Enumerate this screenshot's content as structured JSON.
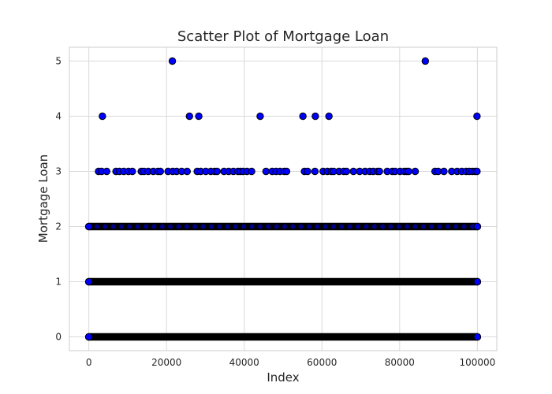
{
  "chart_data": {
    "type": "scatter",
    "title": "Scatter Plot of Mortgage Loan",
    "xlabel": "Index",
    "ylabel": "Mortgage Loan",
    "xlim": [
      -5000,
      105000
    ],
    "ylim": [
      -0.25,
      5.25
    ],
    "x_ticks": [
      0,
      20000,
      40000,
      60000,
      80000,
      100000
    ],
    "x_tick_labels": [
      "0",
      "20000",
      "40000",
      "60000",
      "80000",
      "100000"
    ],
    "y_ticks": [
      0,
      1,
      2,
      3,
      4,
      5
    ],
    "y_tick_labels": [
      "0",
      "1",
      "2",
      "3",
      "4",
      "5"
    ],
    "grid": true,
    "marker_color": "#0000ff",
    "marker_edge_color": "#000000",
    "series": [
      {
        "dense_ranges": [
          {
            "y": 0,
            "x_start": 0,
            "x_end": 100000
          },
          {
            "y": 1,
            "x_start": 0,
            "x_end": 100000
          },
          {
            "y": 2,
            "x_start": 0,
            "x_end": 100000
          }
        ],
        "points": [
          {
            "x": 2500,
            "y": 3
          },
          {
            "x": 3300,
            "y": 3
          },
          {
            "x": 4600,
            "y": 3
          },
          {
            "x": 7000,
            "y": 3
          },
          {
            "x": 7900,
            "y": 3
          },
          {
            "x": 9000,
            "y": 3
          },
          {
            "x": 10200,
            "y": 3
          },
          {
            "x": 11200,
            "y": 3
          },
          {
            "x": 13500,
            "y": 3
          },
          {
            "x": 14200,
            "y": 3
          },
          {
            "x": 15300,
            "y": 3
          },
          {
            "x": 16600,
            "y": 3
          },
          {
            "x": 17800,
            "y": 3
          },
          {
            "x": 18400,
            "y": 3
          },
          {
            "x": 20400,
            "y": 3
          },
          {
            "x": 21600,
            "y": 3
          },
          {
            "x": 22600,
            "y": 3
          },
          {
            "x": 23900,
            "y": 3
          },
          {
            "x": 25300,
            "y": 3
          },
          {
            "x": 27900,
            "y": 3
          },
          {
            "x": 28800,
            "y": 3
          },
          {
            "x": 30100,
            "y": 3
          },
          {
            "x": 31400,
            "y": 3
          },
          {
            "x": 32400,
            "y": 3
          },
          {
            "x": 33000,
            "y": 3
          },
          {
            "x": 34800,
            "y": 3
          },
          {
            "x": 36000,
            "y": 3
          },
          {
            "x": 37200,
            "y": 3
          },
          {
            "x": 38400,
            "y": 3
          },
          {
            "x": 39000,
            "y": 3
          },
          {
            "x": 39700,
            "y": 3
          },
          {
            "x": 40700,
            "y": 3
          },
          {
            "x": 41900,
            "y": 3
          },
          {
            "x": 45600,
            "y": 3
          },
          {
            "x": 47200,
            "y": 3
          },
          {
            "x": 48200,
            "y": 3
          },
          {
            "x": 49200,
            "y": 3
          },
          {
            "x": 50300,
            "y": 3
          },
          {
            "x": 50900,
            "y": 3
          },
          {
            "x": 55500,
            "y": 3
          },
          {
            "x": 56300,
            "y": 3
          },
          {
            "x": 58200,
            "y": 3
          },
          {
            "x": 60300,
            "y": 3
          },
          {
            "x": 61400,
            "y": 3
          },
          {
            "x": 62400,
            "y": 3
          },
          {
            "x": 63000,
            "y": 3
          },
          {
            "x": 64400,
            "y": 3
          },
          {
            "x": 65600,
            "y": 3
          },
          {
            "x": 66300,
            "y": 3
          },
          {
            "x": 68100,
            "y": 3
          },
          {
            "x": 69700,
            "y": 3
          },
          {
            "x": 71100,
            "y": 3
          },
          {
            "x": 72300,
            "y": 3
          },
          {
            "x": 73200,
            "y": 3
          },
          {
            "x": 74300,
            "y": 3
          },
          {
            "x": 74800,
            "y": 3
          },
          {
            "x": 76800,
            "y": 3
          },
          {
            "x": 78100,
            "y": 3
          },
          {
            "x": 78800,
            "y": 3
          },
          {
            "x": 80100,
            "y": 3
          },
          {
            "x": 81200,
            "y": 3
          },
          {
            "x": 81800,
            "y": 3
          },
          {
            "x": 82300,
            "y": 3
          },
          {
            "x": 84000,
            "y": 3
          },
          {
            "x": 89100,
            "y": 3
          },
          {
            "x": 89900,
            "y": 3
          },
          {
            "x": 91400,
            "y": 3
          },
          {
            "x": 93400,
            "y": 3
          },
          {
            "x": 94800,
            "y": 3
          },
          {
            "x": 96000,
            "y": 3
          },
          {
            "x": 97100,
            "y": 3
          },
          {
            "x": 97900,
            "y": 3
          },
          {
            "x": 98700,
            "y": 3
          },
          {
            "x": 99400,
            "y": 3
          },
          {
            "x": 99900,
            "y": 3
          },
          {
            "x": 3500,
            "y": 4
          },
          {
            "x": 25900,
            "y": 4
          },
          {
            "x": 28300,
            "y": 4
          },
          {
            "x": 44100,
            "y": 4
          },
          {
            "x": 55100,
            "y": 4
          },
          {
            "x": 58300,
            "y": 4
          },
          {
            "x": 61800,
            "y": 4
          },
          {
            "x": 99900,
            "y": 4
          },
          {
            "x": 21500,
            "y": 5
          },
          {
            "x": 86600,
            "y": 5
          }
        ]
      }
    ]
  }
}
